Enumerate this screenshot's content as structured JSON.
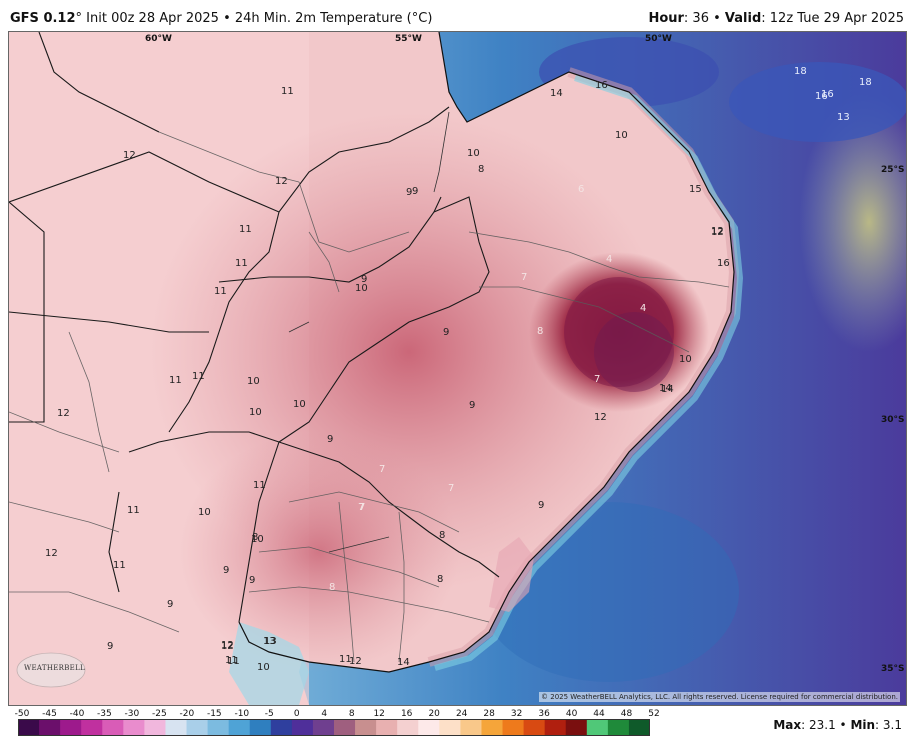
{
  "header": {
    "model": "GFS 0.12",
    "init": "° Init 00z 28 Apr 2025 • 24h Min. 2m Temperature (°C)",
    "hour_label": "Hour",
    "hour_value": ": 36 • ",
    "valid_label": "Valid",
    "valid_value": ": 12z Tue 29 Apr 2025"
  },
  "map": {
    "lon_labels": [
      "60°W",
      "55°W",
      "50°W"
    ],
    "lat_labels": [
      "25°S",
      "30°S",
      "35°S"
    ],
    "temperature_labels": [
      "11",
      "12",
      "12",
      "11",
      "11",
      "11",
      "9",
      "9",
      "9",
      "10",
      "10",
      "10",
      "8",
      "14",
      "16",
      "10",
      "15",
      "16",
      "12",
      "10",
      "14",
      "12",
      "12",
      "11",
      "11",
      "10",
      "10",
      "9",
      "10",
      "11",
      "11",
      "12",
      "11",
      "10",
      "9",
      "9",
      "9",
      "9",
      "13",
      "12",
      "11",
      "10",
      "14",
      "12",
      "8",
      "8",
      "8",
      "8",
      "7",
      "7",
      "7",
      "7",
      "6",
      "4",
      "4",
      "8",
      "9",
      "9",
      "7",
      "7",
      "9",
      "18",
      "16",
      "18",
      "16",
      "13",
      "12",
      "13",
      "11",
      "12",
      "11",
      "14"
    ],
    "copyright": "© 2025 WeatherBELL Analytics, LLC. All rights reserved. License required for commercial distribution.",
    "logo_text": "WEATHERBELL"
  },
  "colorbar": {
    "ticks": [
      "-50",
      "-45",
      "-40",
      "-35",
      "-30",
      "-25",
      "-20",
      "-15",
      "-10",
      "-5",
      "0",
      "4",
      "8",
      "12",
      "16",
      "20",
      "24",
      "28",
      "32",
      "36",
      "40",
      "44",
      "48",
      "52"
    ],
    "colors": [
      "#3a0a4a",
      "#6b0f6b",
      "#9d1a8c",
      "#c0309f",
      "#d95cb7",
      "#e98ccd",
      "#f1b7dd",
      "#d7e3f1",
      "#a9cfe9",
      "#7cbbe0",
      "#4fa3d6",
      "#2f7fbf",
      "#2f3f9e",
      "#4f2f9a",
      "#6f3f8f",
      "#9f5f7f",
      "#c88f8f",
      "#e8b0b0",
      "#f4d0d0",
      "#fde9e9",
      "#fde0c8",
      "#f9c88a",
      "#f5a53a",
      "#ee7a1c",
      "#d84a12",
      "#b01f0f",
      "#7a0f0f",
      "#50c878",
      "#1f8a3a",
      "#0f5a2a"
    ]
  },
  "stats": {
    "max_label": "Max",
    "max_value": ": 23.1 • ",
    "min_label": "Min",
    "min_value": ": 3.1"
  }
}
